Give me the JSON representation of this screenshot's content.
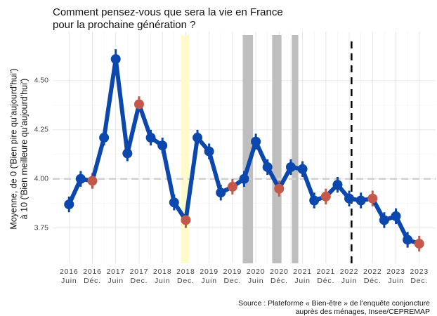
{
  "chart_data": {
    "type": "line",
    "title": [
      "Comment pensez-vous que sera la vie en France",
      "pour la prochaine génération ?"
    ],
    "y_label": [
      "Moyenne, de 0 ('Bien pire qu'aujourd'hui')",
      "à 10 ('Bien meilleure qu'aujourd'hui')"
    ],
    "source": [
      "Source : Plateforme « Bien-être » de l'enquête conjoncture",
      "auprès des ménages, Insee/CEPREMAP"
    ],
    "x": [
      2016.5,
      2016.75,
      2017.0,
      2017.25,
      2017.5,
      2017.75,
      2018.0,
      2018.25,
      2018.5,
      2018.75,
      2019.0,
      2019.25,
      2019.5,
      2019.75,
      2020.0,
      2020.25,
      2020.5,
      2020.75,
      2021.0,
      2021.25,
      2021.5,
      2021.75,
      2022.0,
      2022.25,
      2022.5,
      2022.75,
      2023.0,
      2023.25,
      2023.5,
      2023.75,
      2024.0
    ],
    "series": [
      {
        "color": "#0b47ad",
        "values": [
          3.87,
          4.0,
          3.99,
          4.21,
          4.61,
          4.13,
          4.38,
          4.21,
          4.17,
          3.88,
          3.79,
          4.21,
          4.14,
          3.93,
          3.96,
          4.0,
          4.19,
          4.06,
          3.95,
          4.06,
          4.05,
          3.89,
          3.91,
          3.97,
          3.9,
          3.89,
          3.9,
          3.79,
          3.81,
          3.69,
          3.67
        ],
        "errors": [
          0.04,
          0.04,
          0.04,
          0.04,
          0.05,
          0.04,
          0.04,
          0.04,
          0.04,
          0.04,
          0.04,
          0.04,
          0.04,
          0.04,
          0.04,
          0.04,
          0.04,
          0.04,
          0.04,
          0.04,
          0.04,
          0.04,
          0.04,
          0.04,
          0.04,
          0.04,
          0.04,
          0.04,
          0.04,
          0.04,
          0.04
        ],
        "point_colors": [
          "#0b47ad",
          "#0b47ad",
          "#c4584a",
          "#0b47ad",
          "#0b47ad",
          "#0b47ad",
          "#c4584a",
          "#0b47ad",
          "#0b47ad",
          "#0b47ad",
          "#c4584a",
          "#0b47ad",
          "#0b47ad",
          "#0b47ad",
          "#c4584a",
          "#0b47ad",
          "#0b47ad",
          "#0b47ad",
          "#c4584a",
          "#0b47ad",
          "#0b47ad",
          "#0b47ad",
          "#c4584a",
          "#0b47ad",
          "#0b47ad",
          "#0b47ad",
          "#c4584a",
          "#0b47ad",
          "#0b47ad",
          "#0b47ad",
          "#c4584a"
        ]
      }
    ],
    "xlim": [
      2016.15,
      2024.35
    ],
    "ylim": [
      3.57,
      4.75
    ],
    "yticks": [
      {
        "value": 3.75,
        "label": "3.75"
      },
      {
        "value": 4.0,
        "label": "4.00"
      },
      {
        "value": 4.25,
        "label": "4.25"
      },
      {
        "value": 4.5,
        "label": "4.50"
      }
    ],
    "xticks": [
      {
        "value": 2016.5,
        "year": "2016",
        "label": "Juin"
      },
      {
        "value": 2017.0,
        "year": "2016",
        "label": "Déc."
      },
      {
        "value": 2017.5,
        "year": "2017",
        "label": "Juin"
      },
      {
        "value": 2018.0,
        "year": "2017",
        "label": "Dec."
      },
      {
        "value": 2018.5,
        "year": "2018",
        "label": "Juin"
      },
      {
        "value": 2019.0,
        "year": "2018",
        "label": "Dec."
      },
      {
        "value": 2019.5,
        "year": "2019",
        "label": "Juin"
      },
      {
        "value": 2020.0,
        "year": "2019",
        "label": "Dec."
      },
      {
        "value": 2020.5,
        "year": "2020",
        "label": "Juin"
      },
      {
        "value": 2021.0,
        "year": "2020",
        "label": "Déc."
      },
      {
        "value": 2021.5,
        "year": "2021",
        "label": "Juin"
      },
      {
        "value": 2022.0,
        "year": "2021",
        "label": "Déc."
      },
      {
        "value": 2022.5,
        "year": "2022",
        "label": "Juin"
      },
      {
        "value": 2023.0,
        "year": "2022",
        "label": "Déc."
      },
      {
        "value": 2023.5,
        "year": "2023",
        "label": "Juin"
      },
      {
        "value": 2024.0,
        "year": "2023",
        "label": "Dec."
      }
    ],
    "bands": [
      {
        "from": 2018.9,
        "to": 2019.07,
        "color": "#fff9cc"
      },
      {
        "from": 2020.22,
        "to": 2020.44,
        "color": "#bebebe"
      },
      {
        "from": 2020.85,
        "to": 2021.05,
        "color": "#bebebe"
      },
      {
        "from": 2021.27,
        "to": 2021.41,
        "color": "#bebebe"
      }
    ],
    "vline": 2022.55,
    "hline": 4.0,
    "grid": true
  }
}
